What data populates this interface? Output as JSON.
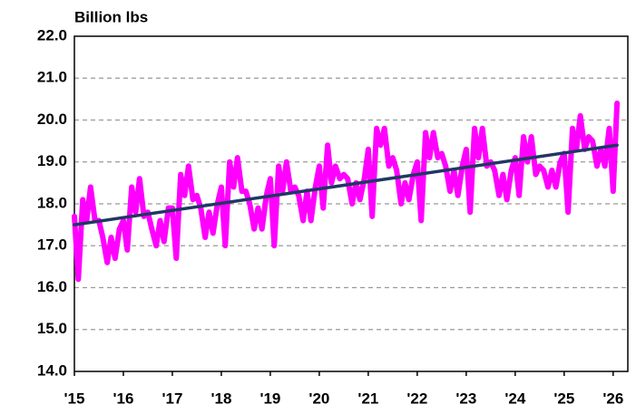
{
  "chart_data": {
    "type": "line",
    "title": "Billion lbs",
    "x": [
      2015,
      2015.08,
      2015.17,
      2015.25,
      2015.33,
      2015.42,
      2015.5,
      2015.58,
      2015.67,
      2015.75,
      2015.83,
      2015.92,
      2016,
      2016.08,
      2016.17,
      2016.25,
      2016.33,
      2016.42,
      2016.5,
      2016.58,
      2016.67,
      2016.75,
      2016.83,
      2016.92,
      2017,
      2017.08,
      2017.17,
      2017.25,
      2017.33,
      2017.42,
      2017.5,
      2017.58,
      2017.67,
      2017.75,
      2017.83,
      2017.92,
      2018,
      2018.08,
      2018.17,
      2018.25,
      2018.33,
      2018.42,
      2018.5,
      2018.58,
      2018.67,
      2018.75,
      2018.83,
      2018.92,
      2019,
      2019.08,
      2019.17,
      2019.25,
      2019.33,
      2019.42,
      2019.5,
      2019.58,
      2019.67,
      2019.75,
      2019.83,
      2019.92,
      2020,
      2020.08,
      2020.17,
      2020.25,
      2020.33,
      2020.42,
      2020.5,
      2020.58,
      2020.67,
      2020.75,
      2020.83,
      2020.92,
      2021,
      2021.08,
      2021.17,
      2021.25,
      2021.33,
      2021.42,
      2021.5,
      2021.58,
      2021.67,
      2021.75,
      2021.83,
      2021.92,
      2022,
      2022.08,
      2022.17,
      2022.25,
      2022.33,
      2022.42,
      2022.5,
      2022.58,
      2022.67,
      2022.75,
      2022.83,
      2022.92,
      2023,
      2023.08,
      2023.17,
      2023.25,
      2023.33,
      2023.42,
      2023.5,
      2023.58,
      2023.67,
      2023.75,
      2023.83,
      2023.92,
      2024,
      2024.08,
      2024.17,
      2024.25,
      2024.33,
      2024.42,
      2024.5,
      2024.58,
      2024.67,
      2024.75,
      2024.83,
      2024.92,
      2025,
      2025.08,
      2025.17,
      2025.25,
      2025.33,
      2025.42,
      2025.5,
      2025.58,
      2025.67,
      2025.75,
      2025.83,
      2025.92,
      2026,
      2026.08
    ],
    "series": [
      {
        "color": "#ff00ff",
        "values": [
          17.7,
          16.2,
          18.1,
          17.6,
          18.4,
          17.6,
          17.6,
          17.2,
          16.6,
          17.2,
          16.7,
          17.4,
          17.6,
          16.9,
          18.4,
          17.8,
          18.6,
          17.7,
          17.8,
          17.4,
          17.0,
          17.6,
          17.1,
          17.9,
          17.9,
          16.7,
          18.7,
          18.2,
          18.9,
          18.1,
          18.2,
          17.9,
          17.2,
          17.8,
          17.3,
          18.0,
          18.4,
          17.0,
          19.0,
          18.4,
          19.1,
          18.3,
          18.3,
          18.0,
          17.4,
          17.9,
          17.4,
          18.2,
          18.6,
          17.0,
          18.9,
          18.3,
          19.0,
          18.3,
          18.4,
          18.2,
          17.6,
          18.3,
          17.6,
          18.4,
          18.9,
          17.9,
          19.4,
          18.5,
          18.9,
          18.6,
          18.7,
          18.6,
          18.0,
          18.5,
          18.1,
          18.6,
          19.3,
          17.7,
          19.8,
          19.4,
          19.8,
          18.9,
          19.1,
          18.8,
          18.0,
          18.5,
          18.1,
          18.7,
          19.0,
          17.6,
          19.7,
          19.1,
          19.7,
          19.1,
          19.2,
          18.9,
          18.3,
          18.8,
          18.2,
          18.9,
          19.3,
          17.8,
          19.8,
          19.1,
          19.8,
          18.9,
          19.0,
          18.8,
          18.2,
          18.7,
          18.1,
          18.8,
          19.1,
          18.2,
          19.6,
          19.0,
          19.6,
          18.7,
          18.9,
          18.8,
          18.4,
          18.8,
          18.4,
          19.0,
          19.2,
          17.8,
          19.8,
          19.3,
          20.1,
          19.3,
          19.6,
          19.5,
          18.9,
          19.3,
          18.9,
          19.8,
          18.3,
          20.4
        ]
      },
      {
        "color": "#1f3864",
        "x": [
          2015,
          2026.08
        ],
        "values": [
          17.5,
          19.4
        ]
      }
    ],
    "xlim": [
      2015,
      2026.3
    ],
    "xticks": [
      {
        "value": 2015,
        "label": "'15"
      },
      {
        "value": 2016,
        "label": "'16"
      },
      {
        "value": 2017,
        "label": "'17"
      },
      {
        "value": 2018,
        "label": "'18"
      },
      {
        "value": 2019,
        "label": "'19"
      },
      {
        "value": 2020,
        "label": "'20"
      },
      {
        "value": 2021,
        "label": "'21"
      },
      {
        "value": 2022,
        "label": "'22"
      },
      {
        "value": 2023,
        "label": "'23"
      },
      {
        "value": 2024,
        "label": "'24"
      },
      {
        "value": 2025,
        "label": "'25"
      },
      {
        "value": 2026,
        "label": "'26"
      }
    ],
    "ylim": [
      14,
      22
    ],
    "yticks": [
      {
        "value": 14,
        "label": "14.0"
      },
      {
        "value": 15,
        "label": "15.0"
      },
      {
        "value": 16,
        "label": "16.0"
      },
      {
        "value": 17,
        "label": "17.0"
      },
      {
        "value": 18,
        "label": "18.0"
      },
      {
        "value": 19,
        "label": "19.0"
      },
      {
        "value": 20,
        "label": "20.0"
      },
      {
        "value": 21,
        "label": "21.0"
      },
      {
        "value": 22,
        "label": "22.0"
      }
    ],
    "grid": true
  }
}
